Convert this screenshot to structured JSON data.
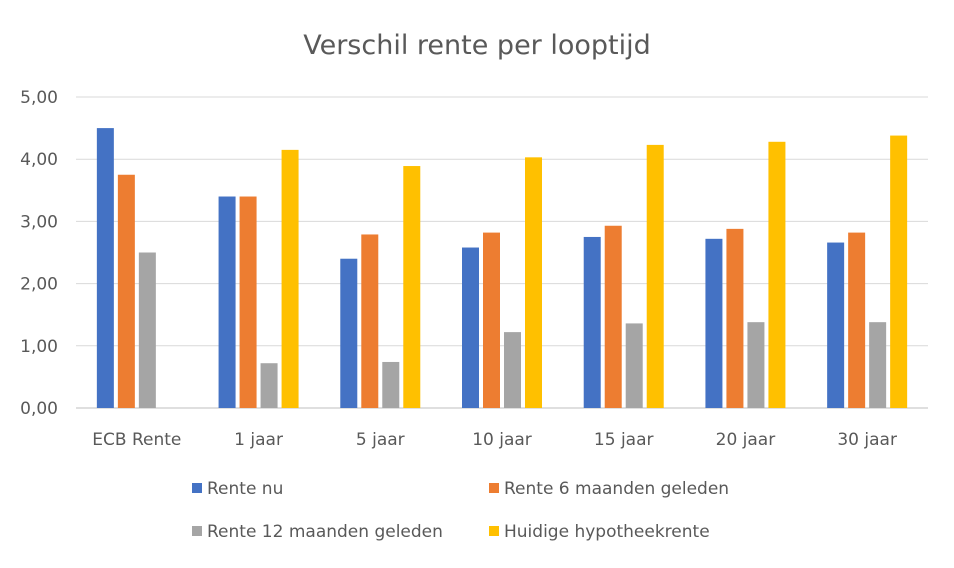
{
  "chart_data": {
    "type": "bar",
    "title": "Verschil rente per looptijd",
    "categories": [
      "ECB Rente",
      "1 jaar",
      "5 jaar",
      "10 jaar",
      "15 jaar",
      "20 jaar",
      "30 jaar"
    ],
    "series": [
      {
        "name": "Rente nu",
        "color": "#4472C4",
        "values": [
          4.5,
          3.4,
          2.4,
          2.58,
          2.75,
          2.72,
          2.66
        ]
      },
      {
        "name": "Rente 6 maanden geleden",
        "color": "#ED7D31",
        "values": [
          3.75,
          3.4,
          2.79,
          2.82,
          2.93,
          2.88,
          2.82
        ]
      },
      {
        "name": "Rente 12 maanden geleden",
        "color": "#A5A5A5",
        "values": [
          2.5,
          0.72,
          0.74,
          1.22,
          1.36,
          1.38,
          1.38
        ]
      },
      {
        "name": "Huidige hypotheekrente",
        "color": "#FFC000",
        "values": [
          null,
          4.15,
          3.89,
          4.03,
          4.23,
          4.28,
          4.38
        ]
      }
    ],
    "ylim": [
      0,
      5
    ],
    "yticks": [
      "0,00",
      "1,00",
      "2,00",
      "3,00",
      "4,00",
      "5,00"
    ],
    "grid": true,
    "legend_position": "bottom"
  }
}
